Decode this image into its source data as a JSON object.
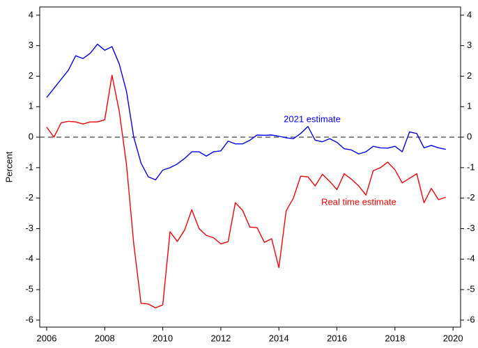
{
  "chart_data": {
    "type": "line",
    "y_label": "Percent",
    "x": [
      2006,
      2006.25,
      2006.5,
      2006.75,
      2007,
      2007.25,
      2007.5,
      2007.75,
      2008,
      2008.25,
      2008.5,
      2008.75,
      2009,
      2009.25,
      2009.5,
      2009.75,
      2010,
      2010.25,
      2010.5,
      2010.75,
      2011,
      2011.25,
      2011.5,
      2011.75,
      2012,
      2012.25,
      2012.5,
      2012.75,
      2013,
      2013.25,
      2013.5,
      2013.75,
      2014,
      2014.25,
      2014.5,
      2014.75,
      2015,
      2015.25,
      2015.5,
      2015.75,
      2016,
      2016.25,
      2016.5,
      2016.75,
      2017,
      2017.25,
      2017.5,
      2017.75,
      2018,
      2018.25,
      2018.5,
      2018.75,
      2019,
      2019.25,
      2019.5,
      2019.75
    ],
    "series": [
      {
        "name": "2021 estimate",
        "color": "#0000ff",
        "values": [
          1.3,
          1.6,
          1.9,
          2.2,
          2.67,
          2.58,
          2.75,
          3.05,
          2.85,
          2.97,
          2.4,
          1.5,
          0.0,
          -0.85,
          -1.3,
          -1.4,
          -1.08,
          -1.0,
          -0.88,
          -0.7,
          -0.48,
          -0.48,
          -0.62,
          -0.48,
          -0.45,
          -0.13,
          -0.22,
          -0.22,
          -0.1,
          0.07,
          0.06,
          0.07,
          0.03,
          -0.02,
          -0.05,
          0.12,
          0.35,
          -0.1,
          -0.15,
          -0.05,
          -0.17,
          -0.38,
          -0.42,
          -0.55,
          -0.48,
          -0.3,
          -0.35,
          -0.36,
          -0.3,
          -0.48,
          0.17,
          0.12,
          -0.35,
          -0.27,
          -0.35,
          -0.4
        ]
      },
      {
        "name": "Real time estimate",
        "color": "#ff0000",
        "values": [
          0.33,
          0.0,
          0.47,
          0.52,
          0.5,
          0.43,
          0.5,
          0.5,
          0.57,
          2.03,
          0.85,
          -0.9,
          -3.5,
          -5.45,
          -5.47,
          -5.6,
          -5.5,
          -3.1,
          -3.42,
          -3.05,
          -2.38,
          -3.0,
          -3.22,
          -3.3,
          -3.5,
          -3.43,
          -2.15,
          -2.4,
          -2.95,
          -2.97,
          -3.45,
          -3.33,
          -4.28,
          -2.42,
          -2.0,
          -1.28,
          -1.3,
          -1.6,
          -1.22,
          -1.45,
          -1.72,
          -1.2,
          -1.38,
          -1.6,
          -1.9,
          -1.1,
          -1.0,
          -0.82,
          -1.07,
          -1.5,
          -1.35,
          -1.2,
          -2.15,
          -1.68,
          -2.05,
          -1.97
        ]
      }
    ],
    "reference_line": {
      "y": 0,
      "color": "#555555",
      "dashed": true
    },
    "xlim": [
      2005.76,
      2020.26
    ],
    "xticks": [
      2006,
      2008,
      2010,
      2012,
      2014,
      2016,
      2018,
      2020
    ],
    "ylim": [
      -6.23,
      4.27
    ],
    "yticks": [
      -6,
      -5,
      -4,
      -3,
      -2,
      -1,
      0,
      1,
      2,
      3,
      4
    ],
    "y2lim": [
      -6.23,
      4.27
    ],
    "y2ticks": [
      -6,
      -5,
      -4,
      -3,
      -2,
      -1,
      0,
      1,
      2,
      3,
      4
    ]
  }
}
